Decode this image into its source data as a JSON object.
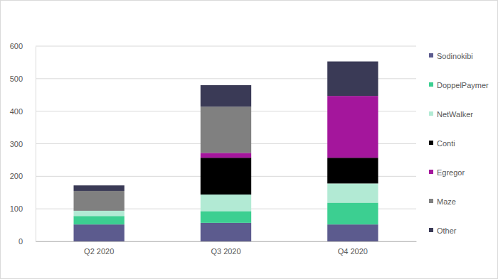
{
  "chart_data": {
    "type": "bar",
    "stacked": true,
    "grid": true,
    "legend": "right",
    "categories": [
      "Q2 2020",
      "Q3 2020",
      "Q4 2020"
    ],
    "ylim": [
      0,
      600
    ],
    "yticks": [
      0,
      100,
      200,
      300,
      400,
      500,
      600
    ],
    "series": [
      {
        "name": "Sodinokibi",
        "color": "#5c5b8e",
        "values": [
          52,
          57,
          52
        ]
      },
      {
        "name": "DoppelPaymer",
        "color": "#3ccf91",
        "values": [
          26,
          36,
          67
        ]
      },
      {
        "name": "NetWalker",
        "color": "#b2ead4",
        "values": [
          16,
          51,
          59
        ]
      },
      {
        "name": "Conti",
        "color": "#000000",
        "values": [
          0,
          113,
          79
        ]
      },
      {
        "name": "Egregor",
        "color": "#a4169c",
        "values": [
          0,
          15,
          190
        ]
      },
      {
        "name": "Maze",
        "color": "#808080",
        "values": [
          61,
          142,
          0
        ]
      },
      {
        "name": "Other",
        "color": "#3a3a56",
        "values": [
          17,
          66,
          106
        ]
      }
    ]
  }
}
